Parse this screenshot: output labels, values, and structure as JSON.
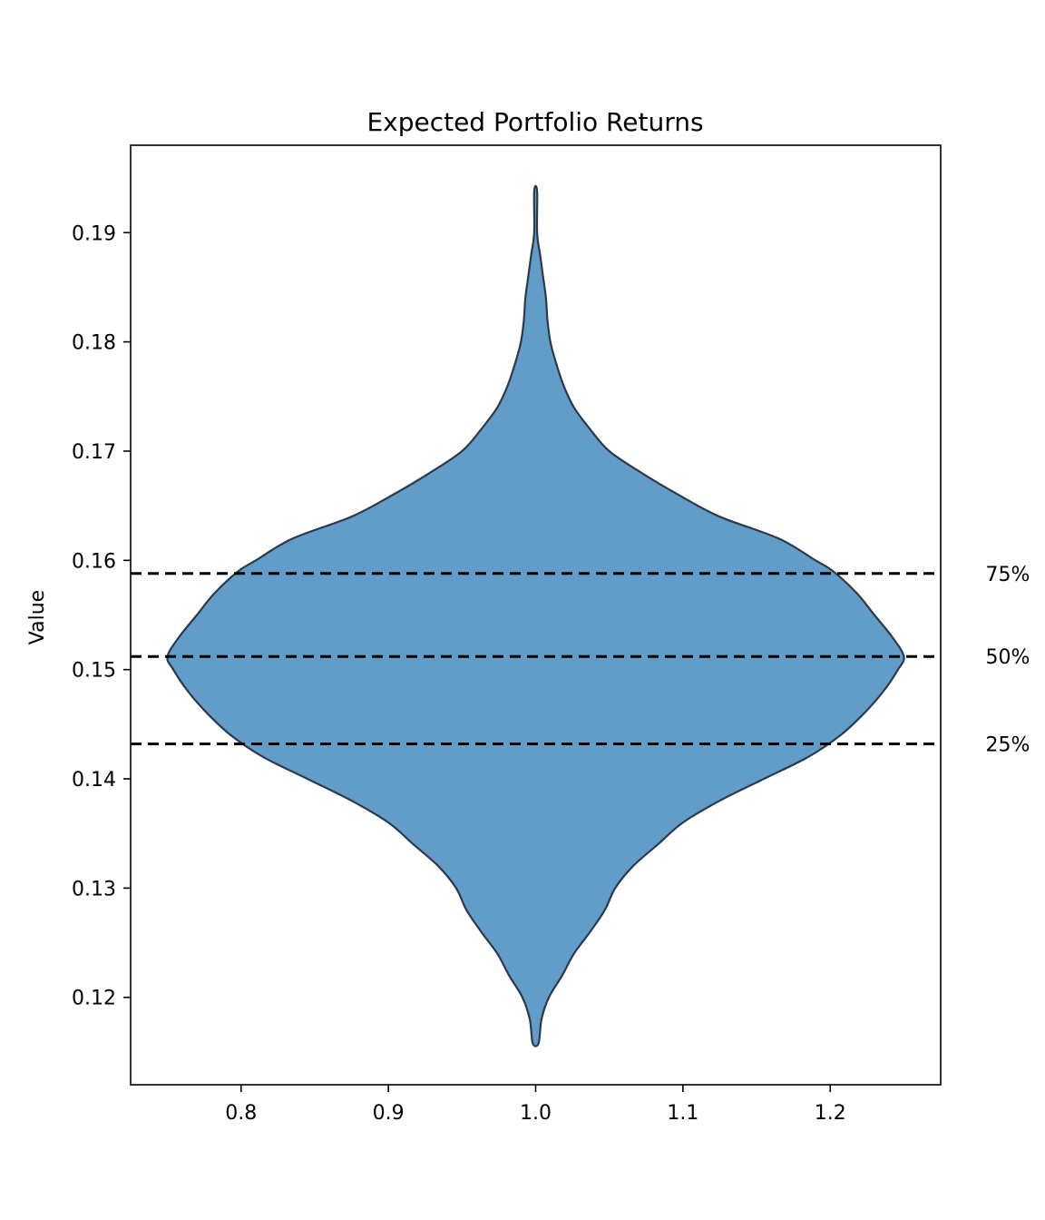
{
  "chart_data": {
    "type": "violin",
    "title": "Expected Portfolio Returns",
    "xlabel": "",
    "ylabel": "Value",
    "xlim": [
      0.725,
      1.275
    ],
    "ylim": [
      0.112,
      0.198
    ],
    "xticks": [
      0.8,
      0.9,
      1.0,
      1.1,
      1.2
    ],
    "xtick_labels": [
      "0.8",
      "0.9",
      "1.0",
      "1.1",
      "1.2"
    ],
    "yticks": [
      0.12,
      0.13,
      0.14,
      0.15,
      0.16,
      0.17,
      0.18,
      0.19
    ],
    "ytick_labels": [
      "0.12",
      "0.13",
      "0.14",
      "0.15",
      "0.16",
      "0.17",
      "0.18",
      "0.19"
    ],
    "grid": false,
    "violin": {
      "position": 1.0,
      "min": 0.1158,
      "max": 0.1938,
      "fill_color": "#4c8fc3",
      "edge_color": "#2b3a4a",
      "density_profile": [
        {
          "y": 0.1158,
          "half_width": 0.002
        },
        {
          "y": 0.118,
          "half_width": 0.004
        },
        {
          "y": 0.12,
          "half_width": 0.009
        },
        {
          "y": 0.122,
          "half_width": 0.018
        },
        {
          "y": 0.124,
          "half_width": 0.026
        },
        {
          "y": 0.126,
          "half_width": 0.037
        },
        {
          "y": 0.128,
          "half_width": 0.047
        },
        {
          "y": 0.13,
          "half_width": 0.054
        },
        {
          "y": 0.132,
          "half_width": 0.066
        },
        {
          "y": 0.134,
          "half_width": 0.083
        },
        {
          "y": 0.136,
          "half_width": 0.1
        },
        {
          "y": 0.138,
          "half_width": 0.125
        },
        {
          "y": 0.14,
          "half_width": 0.155
        },
        {
          "y": 0.142,
          "half_width": 0.185
        },
        {
          "y": 0.144,
          "half_width": 0.207
        },
        {
          "y": 0.146,
          "half_width": 0.223
        },
        {
          "y": 0.148,
          "half_width": 0.236
        },
        {
          "y": 0.15,
          "half_width": 0.246
        },
        {
          "y": 0.1512,
          "half_width": 0.25
        },
        {
          "y": 0.153,
          "half_width": 0.242
        },
        {
          "y": 0.155,
          "half_width": 0.23
        },
        {
          "y": 0.157,
          "half_width": 0.218
        },
        {
          "y": 0.159,
          "half_width": 0.202
        },
        {
          "y": 0.16,
          "half_width": 0.19
        },
        {
          "y": 0.162,
          "half_width": 0.165
        },
        {
          "y": 0.164,
          "half_width": 0.125
        },
        {
          "y": 0.166,
          "half_width": 0.097
        },
        {
          "y": 0.168,
          "half_width": 0.072
        },
        {
          "y": 0.17,
          "half_width": 0.05
        },
        {
          "y": 0.172,
          "half_width": 0.037
        },
        {
          "y": 0.174,
          "half_width": 0.026
        },
        {
          "y": 0.176,
          "half_width": 0.019
        },
        {
          "y": 0.178,
          "half_width": 0.014
        },
        {
          "y": 0.18,
          "half_width": 0.01
        },
        {
          "y": 0.182,
          "half_width": 0.008
        },
        {
          "y": 0.184,
          "half_width": 0.007
        },
        {
          "y": 0.186,
          "half_width": 0.005
        },
        {
          "y": 0.188,
          "half_width": 0.003
        },
        {
          "y": 0.19,
          "half_width": 0.001
        },
        {
          "y": 0.1938,
          "half_width": 0.001
        }
      ]
    },
    "quantiles": [
      {
        "label": "75%",
        "value": 0.1588
      },
      {
        "label": "50%",
        "value": 0.1512
      },
      {
        "label": "25%",
        "value": 0.1432
      }
    ],
    "quantile_line_color": "#000000"
  }
}
